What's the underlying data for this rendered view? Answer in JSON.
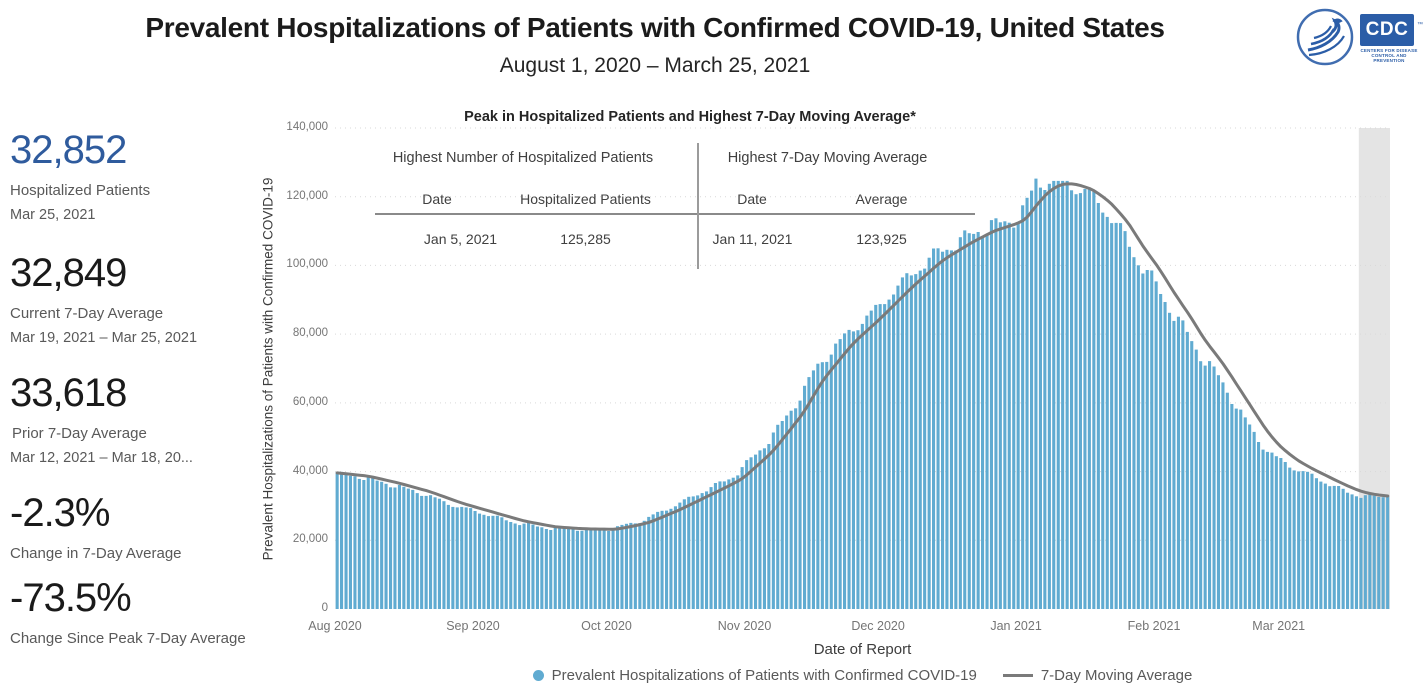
{
  "header": {
    "title": "Prevalent Hospitalizations of Patients with Confirmed COVID-19, United States",
    "subtitle": "August 1, 2020 – March 25, 2021",
    "cdc_logo_text": "CDC",
    "cdc_logo_subtext": "CENTERS FOR DISEASE CONTROL AND PREVENTION"
  },
  "stats": [
    {
      "value": "32,852",
      "label": "Hospitalized Patients",
      "sublabel": "Mar 25, 2021",
      "color": "#2f5b9d"
    },
    {
      "value": "32,849",
      "label": "Current 7-Day Average",
      "sublabel": "Mar 19, 2021 – Mar 25, 2021",
      "color": "#1a1a1a"
    },
    {
      "value": "33,618",
      "label": "Prior 7-Day Average",
      "sublabel": "Mar 12, 2021 – Mar 18, 20...",
      "color": "#1a1a1a"
    },
    {
      "value": "-2.3%",
      "label": "Change in 7-Day Average",
      "sublabel": "",
      "color": "#1a1a1a"
    },
    {
      "value": "-73.5%",
      "label": "Change Since Peak 7-Day Average",
      "sublabel": "",
      "color": "#1a1a1a"
    }
  ],
  "inset_table": {
    "title": "Peak in Hospitalized Patients and Highest 7-Day Moving Average*",
    "left": {
      "header": "Highest Number of Hospitalized Patients",
      "col1": "Date",
      "col2": "Hospitalized Patients",
      "date": "Jan 5, 2021",
      "value": "125,285"
    },
    "right": {
      "header": "Highest 7-Day Moving Average",
      "col1": "Date",
      "col2": "Average",
      "date": "Jan 11, 2021",
      "value": "123,925"
    }
  },
  "chart_data": {
    "type": "bar",
    "title": "Peak in Hospitalized Patients and Highest 7-Day Moving Average*",
    "xlabel": "Date of Report",
    "ylabel": "Prevalent Hospitalizations of Patients with Confirmed COVID-19",
    "x_start_date": "Aug 1, 2020",
    "x_end_date": "Mar 25, 2021",
    "days": 237,
    "ylim": [
      0,
      140000
    ],
    "grid": "dotted-horizontal",
    "legend_position": "bottom-center",
    "yticks": [
      {
        "value": 0,
        "label": "0"
      },
      {
        "value": 20000,
        "label": "20,000"
      },
      {
        "value": 40000,
        "label": "40,000"
      },
      {
        "value": 60000,
        "label": "60,000"
      },
      {
        "value": 80000,
        "label": "80,000"
      },
      {
        "value": 100000,
        "label": "100,000"
      },
      {
        "value": 120000,
        "label": "120,000"
      },
      {
        "value": 140000,
        "label": "140,000"
      }
    ],
    "xticks": [
      {
        "label": "Aug 2020",
        "day": 0
      },
      {
        "label": "Sep 2020",
        "day": 31
      },
      {
        "label": "Oct 2020",
        "day": 61
      },
      {
        "label": "Nov 2020",
        "day": 92
      },
      {
        "label": "Dec 2020",
        "day": 122
      },
      {
        "label": "Jan 2021",
        "day": 153
      },
      {
        "label": "Feb 2021",
        "day": 184
      },
      {
        "label": "Mar 2021",
        "day": 212
      }
    ],
    "series": [
      {
        "name": "Prevalent Hospitalizations of Patients with Confirmed COVID-19",
        "type": "bar",
        "color": "#60abd1",
        "lead_days": 3.2,
        "weekday_pattern": [
          0.01,
          0.016,
          0.011,
          0.002,
          -0.007,
          -0.016,
          -0.014
        ],
        "noise_amp": 0.006,
        "known_points": [
          {
            "date": "Jan 5, 2021",
            "day": 157,
            "value": 125285
          },
          {
            "date": "Mar 25, 2021",
            "day": 236,
            "value": 32852
          }
        ]
      },
      {
        "name": "7-Day Moving Average",
        "type": "line",
        "color": "#7a7a7a",
        "peak": {
          "date": "Jan 11, 2021",
          "day": 163,
          "value": 123925
        },
        "anchors": [
          [
            0,
            39600
          ],
          [
            7,
            38700
          ],
          [
            14,
            36600
          ],
          [
            21,
            34100
          ],
          [
            28,
            30800
          ],
          [
            35,
            28200
          ],
          [
            42,
            25600
          ],
          [
            49,
            23900
          ],
          [
            56,
            23300
          ],
          [
            63,
            23200
          ],
          [
            70,
            25100
          ],
          [
            77,
            28900
          ],
          [
            84,
            33300
          ],
          [
            91,
            37800
          ],
          [
            98,
            46000
          ],
          [
            105,
            57500
          ],
          [
            109,
            66500
          ],
          [
            116,
            77500
          ],
          [
            122,
            84500
          ],
          [
            129,
            93500
          ],
          [
            136,
            101500
          ],
          [
            143,
            107000
          ],
          [
            148,
            110300
          ],
          [
            152,
            111800
          ],
          [
            155,
            113500
          ],
          [
            157,
            117500
          ],
          [
            160,
            121800
          ],
          [
            163,
            123925
          ],
          [
            166,
            123700
          ],
          [
            170,
            122000
          ],
          [
            174,
            118000
          ],
          [
            178,
            112000
          ],
          [
            181,
            105500
          ],
          [
            185,
            98500
          ],
          [
            188,
            92000
          ],
          [
            192,
            84500
          ],
          [
            195,
            78000
          ],
          [
            199,
            71500
          ],
          [
            202,
            65500
          ],
          [
            206,
            57500
          ],
          [
            209,
            51500
          ],
          [
            212,
            47000
          ],
          [
            216,
            43000
          ],
          [
            220,
            40200
          ],
          [
            223,
            38300
          ],
          [
            227,
            35800
          ],
          [
            230,
            34200
          ],
          [
            233,
            33300
          ],
          [
            236,
            32900
          ]
        ]
      }
    ],
    "provisional_band": {
      "start_day": 230,
      "end_day": 237,
      "color": "#e4e4e4"
    },
    "grid_color": "#d9d9d9"
  },
  "legend": {
    "bar_label": "Prevalent Hospitalizations of Patients with Confirmed COVID-19",
    "line_label": "7-Day Moving Average"
  }
}
